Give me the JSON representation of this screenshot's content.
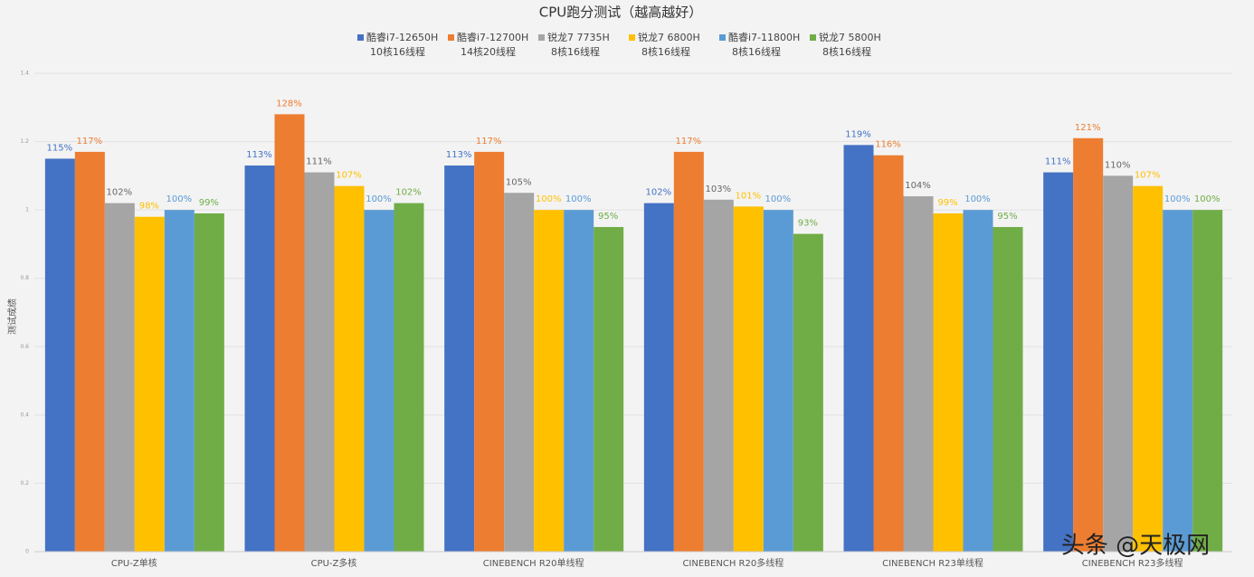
{
  "chart_data": {
    "type": "bar",
    "title": "CPU跑分测试（越高越好）",
    "y_label": "测试成绩",
    "categories": [
      "CPU-Z单核",
      "CPU-Z多核",
      "CINEBENCH R20单线程",
      "CINEBENCH R20多线程",
      "CINEBENCH R23单线程",
      "CINEBENCH R23多线程"
    ],
    "series": [
      {
        "name": "酷睿i7-12650H",
        "cores": "10核16线程",
        "color": "#4472c4",
        "values": [
          1.15,
          1.13,
          1.13,
          1.02,
          1.19,
          1.11
        ],
        "value_labels": [
          "115%",
          "113%",
          "113%",
          "102%",
          "119%",
          "111%"
        ]
      },
      {
        "name": "酷睿i7-12700H",
        "cores": "14核20线程",
        "color": "#ed7d31",
        "values": [
          1.17,
          1.28,
          1.17,
          1.17,
          1.16,
          1.21
        ],
        "value_labels": [
          "117%",
          "128%",
          "117%",
          "117%",
          "116%",
          "121%"
        ]
      },
      {
        "name": "锐龙7 7735H",
        "cores": "8核16线程",
        "color": "#a5a5a5",
        "values": [
          1.02,
          1.11,
          1.05,
          1.03,
          1.04,
          1.1
        ],
        "value_labels": [
          "102%",
          "111%",
          "105%",
          "103%",
          "104%",
          "110%"
        ]
      },
      {
        "name": "锐龙7 6800H",
        "cores": "8核16线程",
        "color": "#ffc000",
        "values": [
          0.98,
          1.07,
          1.0,
          1.01,
          0.99,
          1.07
        ],
        "value_labels": [
          "98%",
          "107%",
          "100%",
          "101%",
          "99%",
          "107%"
        ]
      },
      {
        "name": "酷睿i7-11800H",
        "cores": "8核16线程",
        "color": "#5b9bd5",
        "values": [
          1.0,
          1.0,
          1.0,
          1.0,
          1.0,
          1.0
        ],
        "value_labels": [
          "100%",
          "100%",
          "100%",
          "100%",
          "100%",
          "100%"
        ]
      },
      {
        "name": "锐龙7 5800H",
        "cores": "8核16线程",
        "color": "#70ad47",
        "values": [
          0.99,
          1.02,
          0.95,
          0.93,
          0.95,
          1.0
        ],
        "value_labels": [
          "99%",
          "102%",
          "95%",
          "93%",
          "95%",
          "100%"
        ]
      }
    ],
    "ylim": [
      0,
      1.4
    ],
    "yticks": [
      0,
      0.2,
      0.4,
      0.6,
      0.8,
      1,
      1.2,
      1.4
    ],
    "grid": true,
    "watermark": "头条 @天极网"
  }
}
